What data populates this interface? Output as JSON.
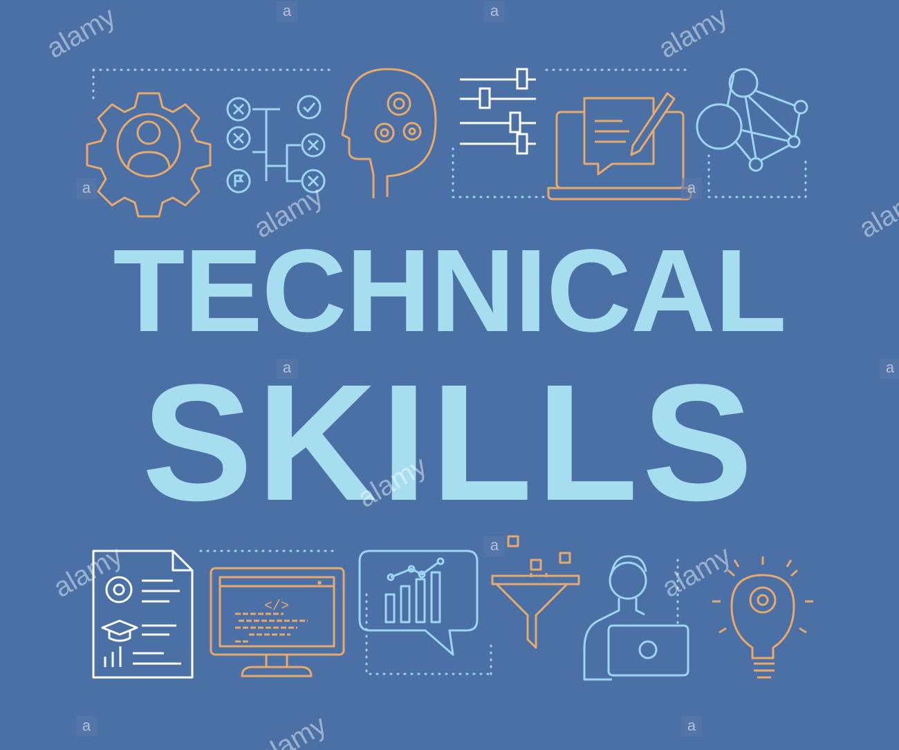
{
  "heading": {
    "line1": "TECHNICAL",
    "line2": "SKILLS"
  },
  "colors": {
    "background": "#4a70a6",
    "title": "#a6def0",
    "orange": "#e9a96b",
    "light_blue": "#9dd6f2",
    "white": "#ffffff"
  },
  "watermark": {
    "text": "alamy",
    "mark": "a"
  },
  "icons": {
    "top": [
      "gear-person-icon",
      "decision-tree-icon",
      "head-gears-icon",
      "sliders-icon",
      "laptop-pen-icon",
      "network-nodes-icon"
    ],
    "bottom": [
      "document-certificate-icon",
      "monitor-code-icon",
      "chart-bubble-icon",
      "funnel-icon",
      "person-laptop-icon",
      "lightbulb-gear-icon"
    ]
  },
  "monitor_code": "</>"
}
